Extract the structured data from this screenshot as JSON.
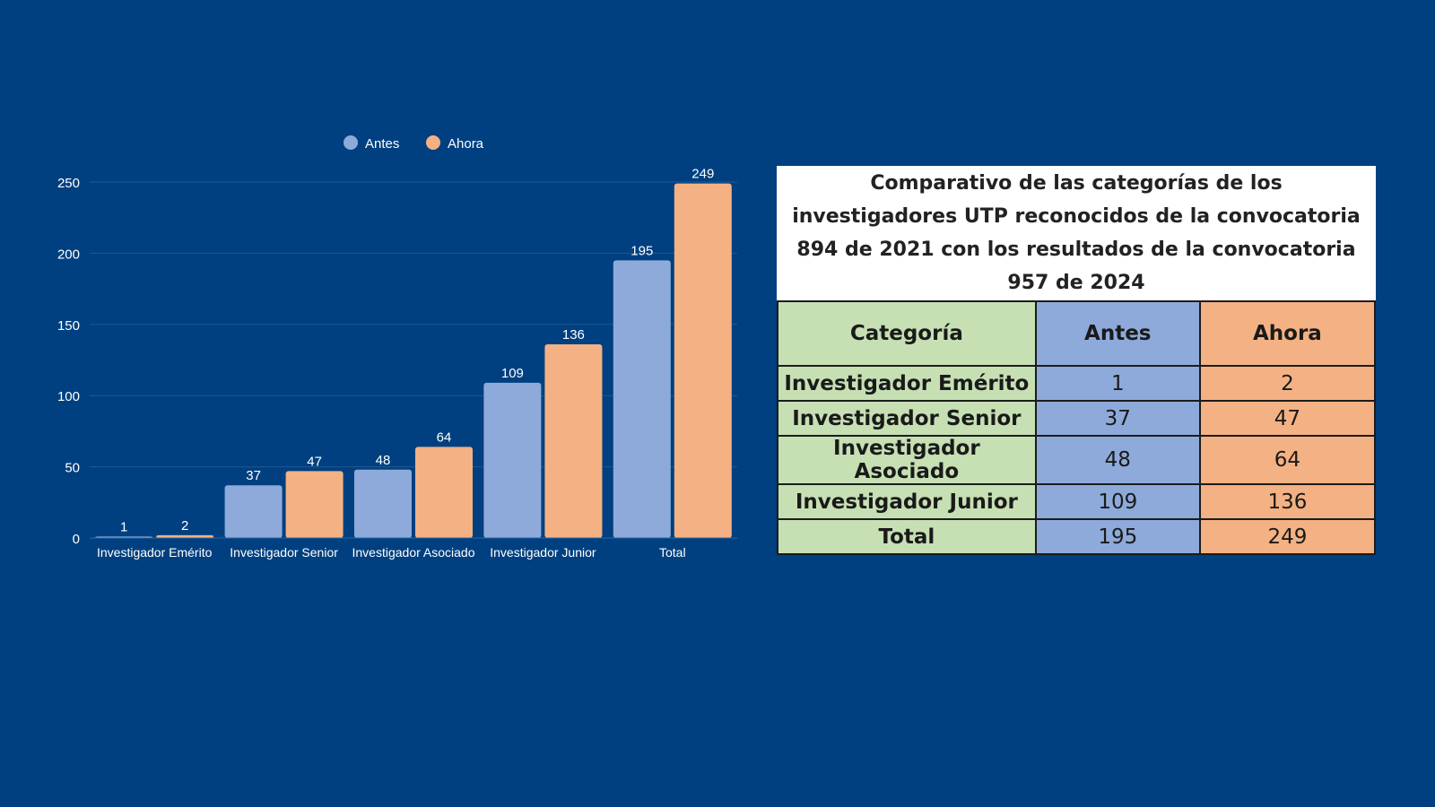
{
  "chart_data": {
    "type": "bar",
    "categories": [
      "Investigador Emérito",
      "Investigador Senior",
      "Investigador Asociado",
      "Investigador Junior",
      "Total"
    ],
    "series": [
      {
        "name": "Antes",
        "values": [
          1,
          37,
          48,
          109,
          195
        ],
        "color": "#8eaadb"
      },
      {
        "name": "Ahora",
        "values": [
          2,
          47,
          64,
          136,
          249
        ],
        "color": "#f4b183"
      }
    ],
    "yticks": [
      0,
      50,
      100,
      150,
      200,
      250
    ],
    "ylim": [
      0,
      250
    ],
    "grid": true,
    "legend_position": "top-center"
  },
  "table": {
    "title": "Comparativo de las categorías de los investigadores UTP reconocidos de la convocatoria 894 de 2021 con los resultados de la convocatoria 957 de 2024",
    "headers": [
      "Categoría",
      "Antes",
      "Ahora"
    ],
    "rows": [
      [
        "Investigador Emérito",
        "1",
        "2"
      ],
      [
        "Investigador Senior",
        "37",
        "47"
      ],
      [
        "Investigador Asociado",
        "48",
        "64"
      ],
      [
        "Investigador Junior",
        "109",
        "136"
      ],
      [
        "Total",
        "195",
        "249"
      ]
    ]
  },
  "colors": {
    "background": "#004080",
    "antes": "#8eaadb",
    "ahora": "#f4b183",
    "categoria": "#c6e0b4"
  }
}
